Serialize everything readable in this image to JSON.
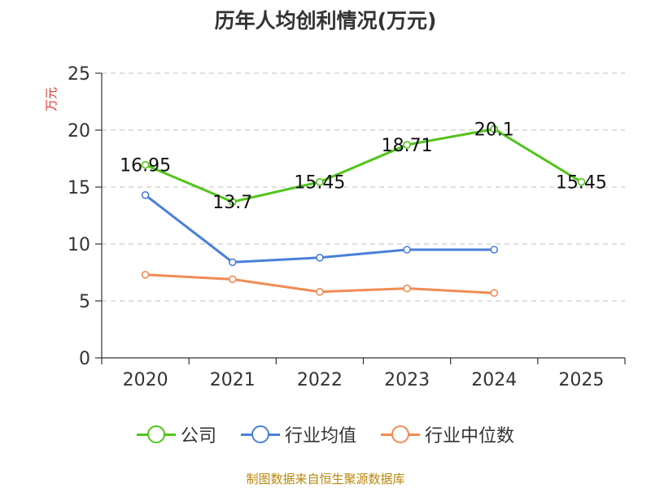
{
  "chart_data": {
    "type": "line",
    "title": "历年人均创利情况(万元)",
    "ylabel": "万元",
    "xlabel": "",
    "categories": [
      "2020",
      "2021",
      "2022",
      "2023",
      "2024",
      "2025"
    ],
    "ylim": [
      0,
      25
    ],
    "yticks": [
      0,
      5,
      10,
      15,
      20,
      25
    ],
    "grid": true,
    "legend_position": "bottom",
    "series": [
      {
        "name": "公司",
        "color": "#52c41a",
        "values": [
          16.95,
          13.7,
          15.45,
          18.71,
          20.1,
          15.45
        ],
        "labels": [
          "16.95",
          "13.7",
          "15.45",
          "18.71",
          "20.1",
          "15.45"
        ]
      },
      {
        "name": "行业均值",
        "color": "#4a7fd8",
        "values": [
          14.3,
          8.4,
          8.8,
          9.5,
          9.5,
          null
        ]
      },
      {
        "name": "行业中位数",
        "color": "#f28b54",
        "values": [
          7.3,
          6.9,
          5.8,
          6.1,
          5.7,
          null
        ]
      }
    ]
  },
  "source_note": "制图数据来自恒生聚源数据库"
}
